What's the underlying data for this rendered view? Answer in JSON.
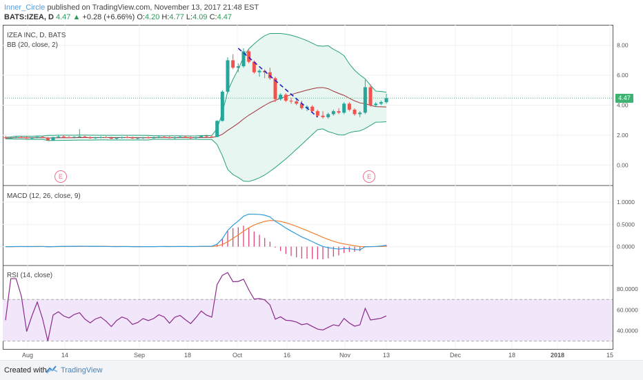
{
  "header": {
    "author": "Inner_Circle",
    "published_text": "published on TradingView.com, November 13, 2017 21:48 EST",
    "symbol": "BATS:IZEA, D",
    "last": "4.47",
    "change": "+0.28 (+6.66%)",
    "open_label": "O:",
    "open": "4.20",
    "high_label": "H:",
    "high": "4.77",
    "low_label": "L:",
    "low": "4.09",
    "close_label": "C:",
    "close": "4.47",
    "up_arrow": "▲"
  },
  "panes": {
    "main_title": "IZEA INC, D, BATS",
    "bb_label": "BB (20, close, 2)",
    "macd_label": "MACD (12, 26, close, 9)",
    "rsi_label": "RSI (14, close)"
  },
  "earnings_marker": "E",
  "price_axis": [
    "8.00",
    "6.00",
    "4.00",
    "2.00",
    "0.00"
  ],
  "price_tag": "4.47",
  "macd_axis": [
    "1.0000",
    "0.5000",
    "0.0000"
  ],
  "rsi_axis": [
    "80.0000",
    "60.0000",
    "40.0000"
  ],
  "time_axis": [
    "Aug",
    "14",
    "Sep",
    "18",
    "Oct",
    "16",
    "Nov",
    "13",
    "Dec",
    "18",
    "2018",
    "15"
  ],
  "footer": {
    "created": "Created with",
    "brand": "TradingView"
  },
  "colors": {
    "up": "#26a69a",
    "down": "#ef5350",
    "bb_band": "#26a07a",
    "bb_basis": "#a0303a",
    "macd_line": "#2c9be0",
    "signal_line": "#f08030",
    "histogram": "#e0457a",
    "rsi_line": "#8a2a8a",
    "rsi_fill": "#f2e6fb",
    "trendline": "#2020c0",
    "price_tag": "#3cb371"
  },
  "chart_data": {
    "type": "line",
    "x_ticks": [
      "Aug",
      "14",
      "Sep",
      "18",
      "Oct",
      "16",
      "Nov",
      "13",
      "Dec",
      "18",
      "2018",
      "15"
    ],
    "price_ylim": [
      -1,
      9
    ],
    "last_price": 4.47,
    "candles_ohlc": [
      [
        1.85,
        1.95,
        1.75,
        1.8
      ],
      [
        1.8,
        1.9,
        1.72,
        1.82
      ],
      [
        1.82,
        1.92,
        1.78,
        1.86
      ],
      [
        1.86,
        1.94,
        1.8,
        1.84
      ],
      [
        1.84,
        1.9,
        1.76,
        1.78
      ],
      [
        1.78,
        1.86,
        1.72,
        1.82
      ],
      [
        1.82,
        1.9,
        1.78,
        1.88
      ],
      [
        1.88,
        1.94,
        1.8,
        1.82
      ],
      [
        1.82,
        1.88,
        1.62,
        1.65
      ],
      [
        1.65,
        1.9,
        1.62,
        1.86
      ],
      [
        1.86,
        1.96,
        1.8,
        1.9
      ],
      [
        1.9,
        2.0,
        1.84,
        1.86
      ],
      [
        1.86,
        1.94,
        1.8,
        1.84
      ],
      [
        1.84,
        1.92,
        1.78,
        1.88
      ],
      [
        1.88,
        2.4,
        1.82,
        1.9
      ],
      [
        1.9,
        1.96,
        1.82,
        1.84
      ],
      [
        1.84,
        1.92,
        1.76,
        1.8
      ],
      [
        1.8,
        1.88,
        1.74,
        1.84
      ],
      [
        1.84,
        1.92,
        1.78,
        1.86
      ],
      [
        1.86,
        1.94,
        1.8,
        1.82
      ],
      [
        1.82,
        1.9,
        1.72,
        1.76
      ],
      [
        1.76,
        1.86,
        1.7,
        1.82
      ],
      [
        1.82,
        1.9,
        1.76,
        1.86
      ],
      [
        1.86,
        1.94,
        1.8,
        1.84
      ],
      [
        1.84,
        1.9,
        1.74,
        1.78
      ],
      [
        1.78,
        1.86,
        1.72,
        1.8
      ],
      [
        1.8,
        1.88,
        1.74,
        1.84
      ],
      [
        1.84,
        1.92,
        1.78,
        1.82
      ],
      [
        1.82,
        1.9,
        1.76,
        1.84
      ],
      [
        1.84,
        1.94,
        1.8,
        1.88
      ],
      [
        1.88,
        1.96,
        1.82,
        1.86
      ],
      [
        1.86,
        1.92,
        1.78,
        1.8
      ],
      [
        1.8,
        1.9,
        1.74,
        1.86
      ],
      [
        1.86,
        1.96,
        1.8,
        1.88
      ],
      [
        1.88,
        1.98,
        1.82,
        1.84
      ],
      [
        1.84,
        1.92,
        1.74,
        1.8
      ],
      [
        1.8,
        1.9,
        1.76,
        1.86
      ],
      [
        1.86,
        2.0,
        1.82,
        1.94
      ],
      [
        1.94,
        2.02,
        1.86,
        1.9
      ],
      [
        1.9,
        1.98,
        1.84,
        1.88
      ],
      [
        1.88,
        3.0,
        1.86,
        2.95
      ],
      [
        2.95,
        5.0,
        2.9,
        4.9
      ],
      [
        4.9,
        7.2,
        4.8,
        7.0
      ],
      [
        7.0,
        7.4,
        6.4,
        6.5
      ],
      [
        6.5,
        6.8,
        6.2,
        6.6
      ],
      [
        6.6,
        7.8,
        6.5,
        7.6
      ],
      [
        7.6,
        7.7,
        6.8,
        6.9
      ],
      [
        6.9,
        7.0,
        6.1,
        6.2
      ],
      [
        6.2,
        6.4,
        5.9,
        6.3
      ],
      [
        6.3,
        6.4,
        5.8,
        6.2
      ],
      [
        6.2,
        6.5,
        5.7,
        5.8
      ],
      [
        5.8,
        5.9,
        4.2,
        4.4
      ],
      [
        4.4,
        4.8,
        4.3,
        4.7
      ],
      [
        4.7,
        4.8,
        4.2,
        4.3
      ],
      [
        4.3,
        4.5,
        4.1,
        4.25
      ],
      [
        4.25,
        4.4,
        4.0,
        4.1
      ],
      [
        4.1,
        4.3,
        3.7,
        3.8
      ],
      [
        3.8,
        4.0,
        3.6,
        3.9
      ],
      [
        3.9,
        4.0,
        3.5,
        3.6
      ],
      [
        3.6,
        3.7,
        3.2,
        3.3
      ],
      [
        3.3,
        3.6,
        3.1,
        3.2
      ],
      [
        3.2,
        3.5,
        3.1,
        3.4
      ],
      [
        3.4,
        3.7,
        3.3,
        3.6
      ],
      [
        3.6,
        3.8,
        3.4,
        3.5
      ],
      [
        3.5,
        4.2,
        3.4,
        4.1
      ],
      [
        4.1,
        4.2,
        3.6,
        3.7
      ],
      [
        3.7,
        3.8,
        3.3,
        3.4
      ],
      [
        3.4,
        3.6,
        3.2,
        3.5
      ],
      [
        3.5,
        5.7,
        3.4,
        5.2
      ],
      [
        5.2,
        5.4,
        3.9,
        4.0
      ],
      [
        4.0,
        4.2,
        3.9,
        4.1
      ],
      [
        4.1,
        4.3,
        4.0,
        4.2
      ],
      [
        4.2,
        4.77,
        4.09,
        4.47
      ]
    ],
    "macd_ylim": [
      -0.3,
      1.25
    ],
    "rsi_ylim": [
      25,
      100
    ],
    "rsi_band": [
      30,
      70
    ]
  }
}
